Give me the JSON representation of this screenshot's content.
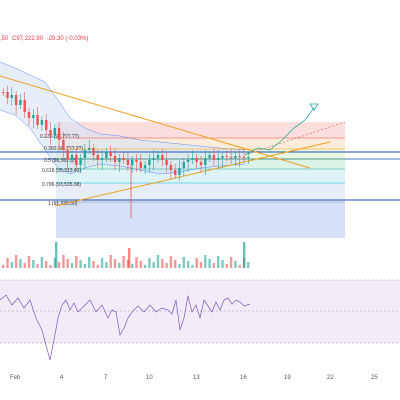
{
  "ohlc": {
    "low": ",50",
    "close": "C97,222.90",
    "change": "-29.30 (-0.03%)"
  },
  "fib_levels": [
    {
      "ratio": "0.236",
      "price": "(98,???.??)"
    },
    {
      "ratio": "0.382",
      "price": "(97,???.??)"
    },
    {
      "ratio": "0.5",
      "price": "(96,362.03)"
    },
    {
      "ratio": "0.618",
      "price": "(95,313.41)"
    },
    {
      "ratio": "0.786",
      "price": "(93,535.98)"
    },
    {
      "ratio": "1",
      "price": "(91,229.00)"
    }
  ],
  "x_axis": [
    "Feb",
    "4",
    "7",
    "10",
    "13",
    "16",
    "19",
    "22",
    "25"
  ],
  "colors": {
    "up": "#26a69a",
    "down": "#ef5350",
    "trend": "#f0a020",
    "bb": "#2962ff",
    "rsi": "#7e57c2"
  }
}
